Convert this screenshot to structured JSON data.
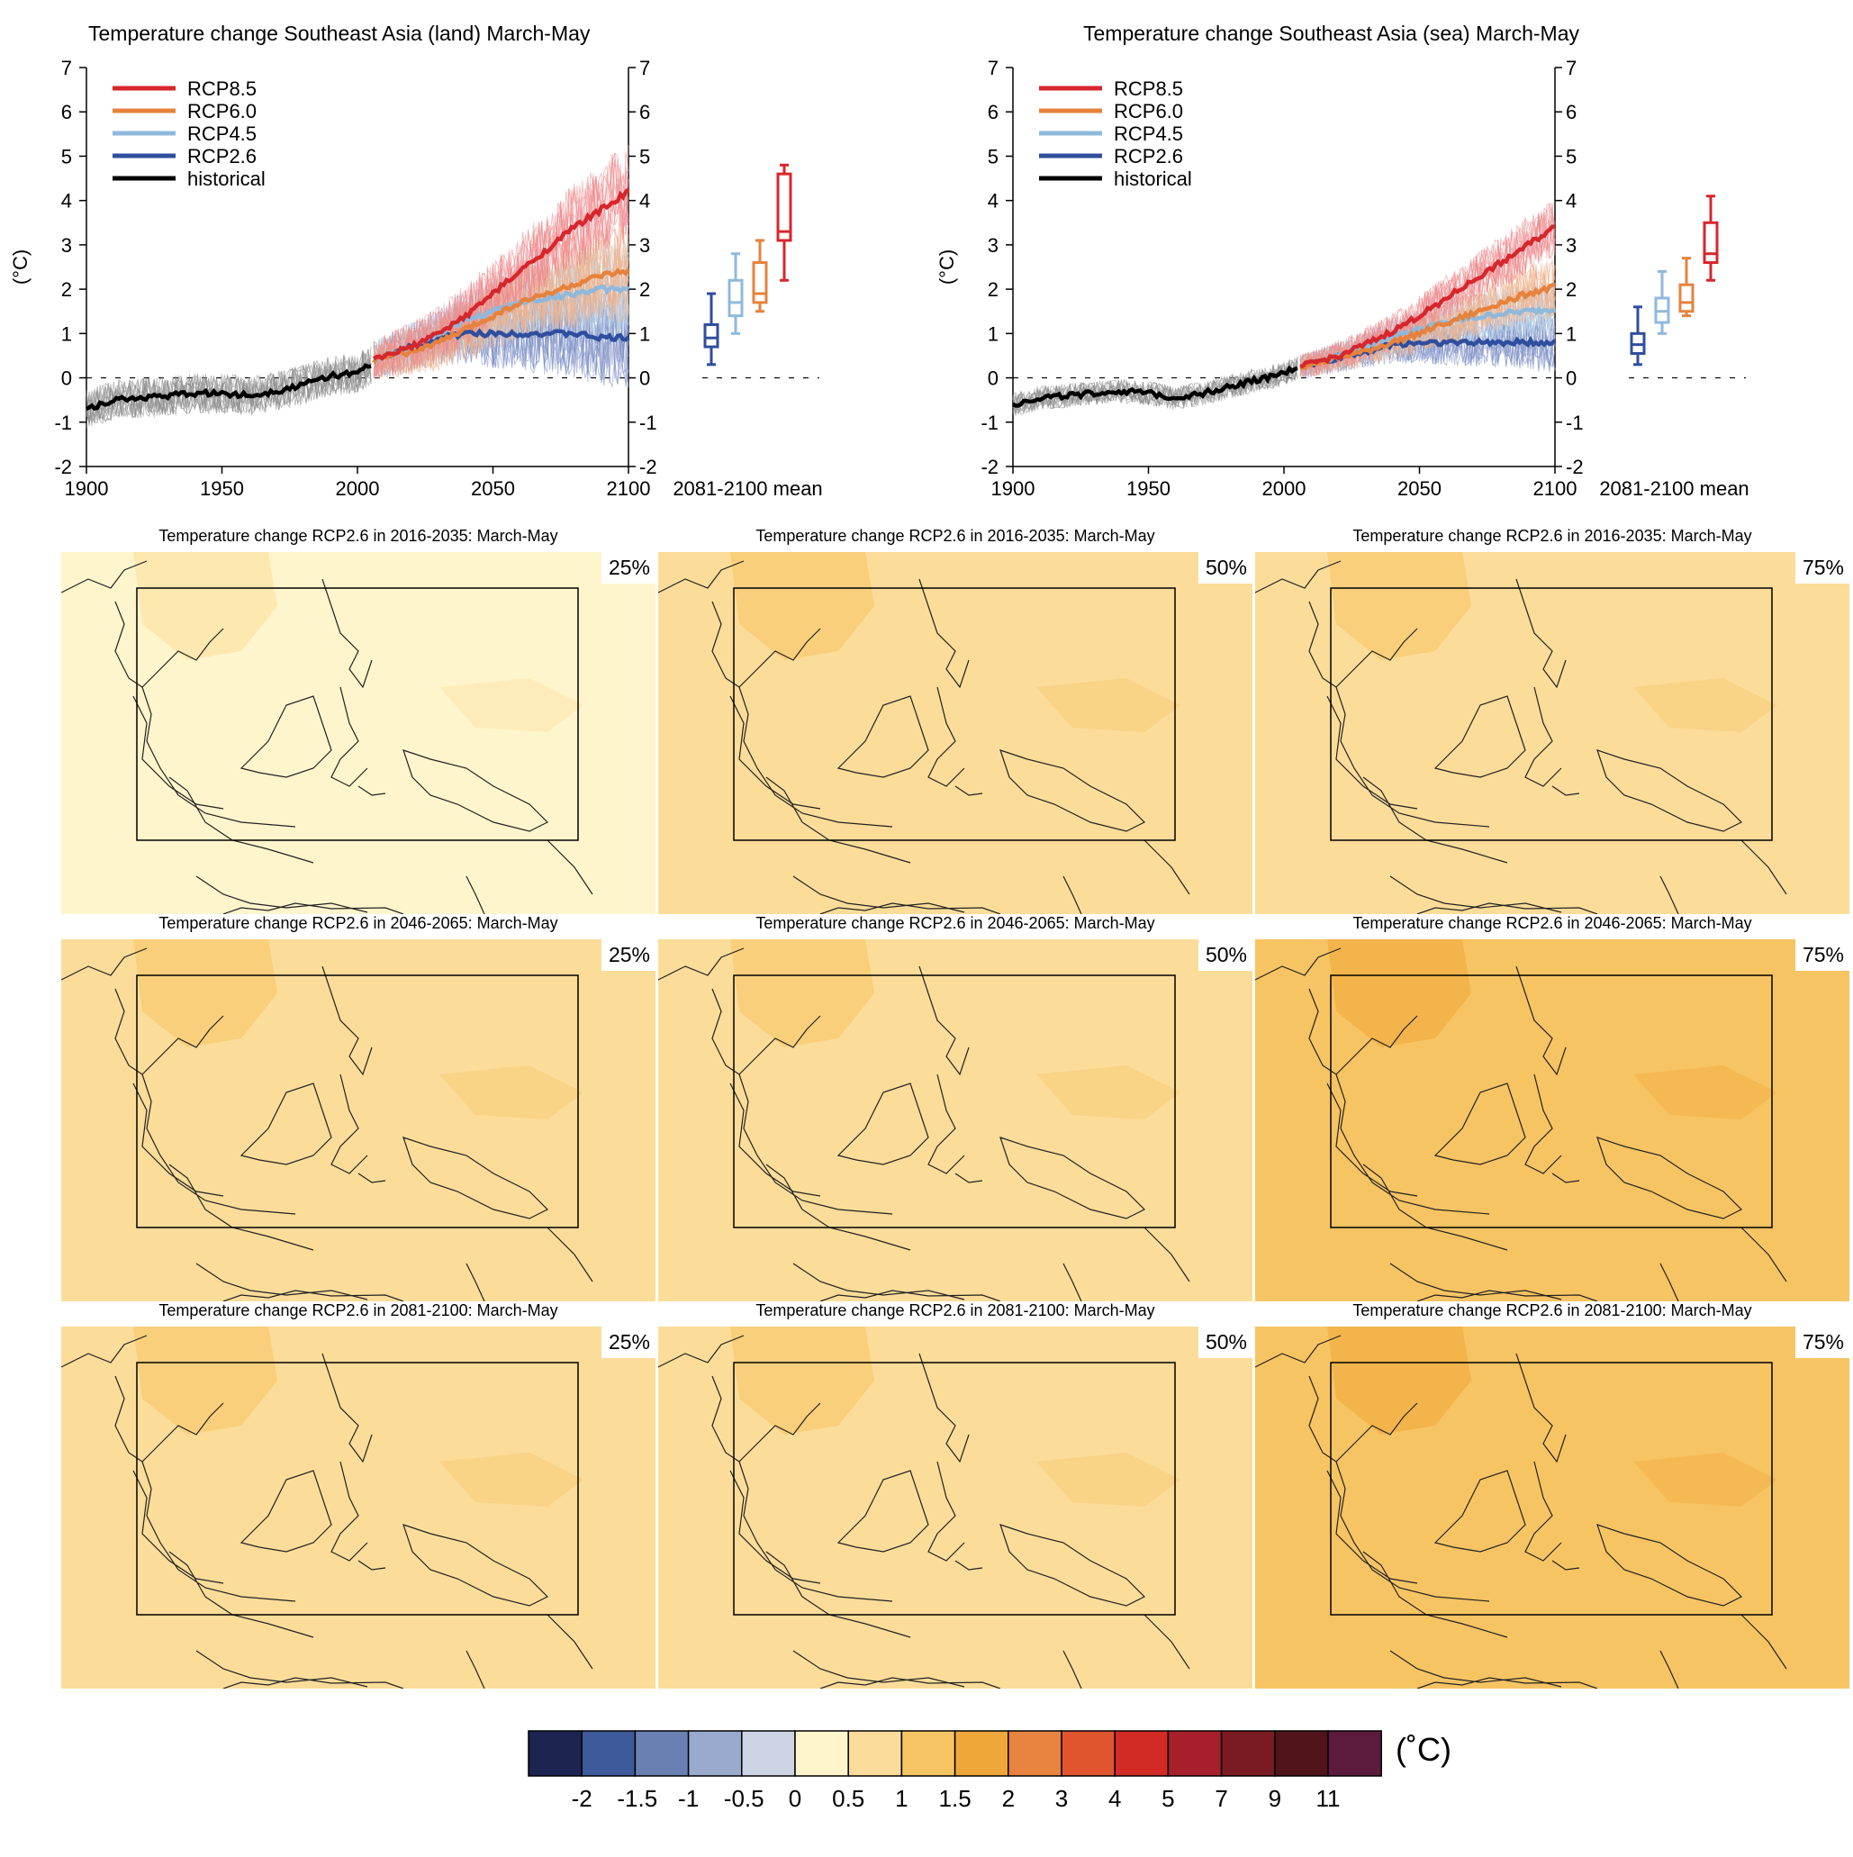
{
  "timeseries": [
    {
      "title": "Temperature change Southeast Asia (land) March-May",
      "ylabel": "(°C)",
      "mean_label": "2081-2100 mean",
      "chart_data": {
        "type": "line",
        "x_range": [
          1900,
          2100
        ],
        "y_range": [
          -2,
          7
        ],
        "x_ticks": [
          "1900",
          "1950",
          "2000",
          "2050",
          "2100"
        ],
        "y_ticks": [
          "-2",
          "-1",
          "0",
          "1",
          "2",
          "3",
          "4",
          "5",
          "6",
          "7"
        ],
        "legend_position": "top-left",
        "series": [
          {
            "name": "RCP8.5",
            "color": "#d7262c",
            "x": [
              2006,
              2020,
              2030,
              2040,
              2050,
              2060,
              2070,
              2080,
              2090,
              2100
            ],
            "y": [
              0.4,
              0.7,
              1.0,
              1.4,
              1.9,
              2.4,
              2.9,
              3.4,
              3.8,
              4.2
            ]
          },
          {
            "name": "RCP6.0",
            "color": "#e6823c",
            "x": [
              2006,
              2020,
              2030,
              2040,
              2050,
              2060,
              2070,
              2080,
              2090,
              2100
            ],
            "y": [
              0.4,
              0.6,
              0.8,
              1.1,
              1.4,
              1.7,
              1.9,
              2.1,
              2.3,
              2.4
            ]
          },
          {
            "name": "RCP4.5",
            "color": "#8fb9dc",
            "x": [
              2006,
              2020,
              2030,
              2040,
              2050,
              2060,
              2070,
              2080,
              2090,
              2100
            ],
            "y": [
              0.4,
              0.7,
              1.0,
              1.3,
              1.5,
              1.7,
              1.8,
              1.9,
              2.0,
              2.0
            ]
          },
          {
            "name": "RCP2.6",
            "color": "#2f4e9e",
            "x": [
              2006,
              2020,
              2030,
              2040,
              2050,
              2060,
              2070,
              2080,
              2090,
              2100
            ],
            "y": [
              0.4,
              0.7,
              0.9,
              1.0,
              1.0,
              1.0,
              1.0,
              1.0,
              0.9,
              0.9
            ]
          },
          {
            "name": "historical",
            "color": "#000000",
            "x": [
              1900,
              1910,
              1920,
              1930,
              1940,
              1950,
              1960,
              1970,
              1980,
              1990,
              2000,
              2005
            ],
            "y": [
              -0.7,
              -0.5,
              -0.45,
              -0.4,
              -0.35,
              -0.35,
              -0.4,
              -0.3,
              -0.15,
              0.05,
              0.1,
              0.3
            ]
          }
        ],
        "mean_boxes": [
          {
            "name": "RCP2.6",
            "color": "#2f4e9e",
            "min": 0.3,
            "q1": 0.7,
            "median": 0.9,
            "q3": 1.2,
            "max": 1.9
          },
          {
            "name": "RCP4.5",
            "color": "#8fb9dc",
            "min": 1.0,
            "q1": 1.4,
            "median": 1.7,
            "q3": 2.2,
            "max": 2.8
          },
          {
            "name": "RCP6.0",
            "color": "#e6823c",
            "min": 1.5,
            "q1": 1.7,
            "median": 1.9,
            "q3": 2.6,
            "max": 3.1
          },
          {
            "name": "RCP8.5",
            "color": "#d7262c",
            "min": 2.2,
            "q1": 3.1,
            "median": 3.3,
            "q3": 4.6,
            "max": 4.8
          }
        ]
      }
    },
    {
      "title": "Temperature change Southeast Asia (sea) March-May",
      "ylabel": "(°C)",
      "mean_label": "2081-2100 mean",
      "chart_data": {
        "type": "line",
        "x_range": [
          1900,
          2100
        ],
        "y_range": [
          -2,
          7
        ],
        "x_ticks": [
          "1900",
          "1950",
          "2000",
          "2050",
          "2100"
        ],
        "y_ticks": [
          "-2",
          "-1",
          "0",
          "1",
          "2",
          "3",
          "4",
          "5",
          "6",
          "7"
        ],
        "legend_position": "top-left",
        "series": [
          {
            "name": "RCP8.5",
            "color": "#d7262c",
            "x": [
              2006,
              2020,
              2030,
              2040,
              2050,
              2060,
              2070,
              2080,
              2090,
              2100
            ],
            "y": [
              0.25,
              0.5,
              0.75,
              1.05,
              1.4,
              1.8,
              2.2,
              2.6,
              3.0,
              3.4
            ]
          },
          {
            "name": "RCP6.0",
            "color": "#e6823c",
            "x": [
              2006,
              2020,
              2030,
              2040,
              2050,
              2060,
              2070,
              2080,
              2090,
              2100
            ],
            "y": [
              0.25,
              0.45,
              0.6,
              0.8,
              1.0,
              1.25,
              1.45,
              1.7,
              1.9,
              2.05
            ]
          },
          {
            "name": "RCP4.5",
            "color": "#8fb9dc",
            "x": [
              2006,
              2020,
              2030,
              2040,
              2050,
              2060,
              2070,
              2080,
              2090,
              2100
            ],
            "y": [
              0.25,
              0.5,
              0.7,
              0.95,
              1.1,
              1.25,
              1.35,
              1.45,
              1.5,
              1.55
            ]
          },
          {
            "name": "RCP2.6",
            "color": "#2f4e9e",
            "x": [
              2006,
              2020,
              2030,
              2040,
              2050,
              2060,
              2070,
              2080,
              2090,
              2100
            ],
            "y": [
              0.25,
              0.45,
              0.6,
              0.75,
              0.8,
              0.8,
              0.8,
              0.8,
              0.8,
              0.8
            ]
          },
          {
            "name": "historical",
            "color": "#000000",
            "x": [
              1900,
              1910,
              1920,
              1930,
              1940,
              1950,
              1960,
              1970,
              1980,
              1990,
              2000,
              2005
            ],
            "y": [
              -0.6,
              -0.45,
              -0.4,
              -0.35,
              -0.3,
              -0.35,
              -0.45,
              -0.35,
              -0.2,
              -0.05,
              0.1,
              0.25
            ]
          }
        ],
        "mean_boxes": [
          {
            "name": "RCP2.6",
            "color": "#2f4e9e",
            "min": 0.3,
            "q1": 0.55,
            "median": 0.75,
            "q3": 1.0,
            "max": 1.6
          },
          {
            "name": "RCP4.5",
            "color": "#8fb9dc",
            "min": 1.0,
            "q1": 1.25,
            "median": 1.5,
            "q3": 1.8,
            "max": 2.4
          },
          {
            "name": "RCP6.0",
            "color": "#e6823c",
            "min": 1.4,
            "q1": 1.5,
            "median": 1.7,
            "q3": 2.1,
            "max": 2.7
          },
          {
            "name": "RCP8.5",
            "color": "#d7262c",
            "min": 2.2,
            "q1": 2.6,
            "median": 2.8,
            "q3": 3.5,
            "max": 4.1
          }
        ]
      }
    }
  ],
  "maps": {
    "rows": [
      {
        "title": "Temperature change RCP2.6 in 2016-2035: March-May",
        "levels": [
          0.5,
          0.9,
          1.0
        ]
      },
      {
        "title": "Temperature change RCP2.6 in 2046-2065: March-May",
        "levels": [
          0.9,
          1.0,
          1.3
        ]
      },
      {
        "title": "Temperature change RCP2.6 in 2081-2100: March-May",
        "levels": [
          0.9,
          1.0,
          1.3
        ]
      }
    ],
    "percentiles": [
      "25%",
      "50%",
      "75%"
    ]
  },
  "colorbar": {
    "unit": "(˚C)",
    "colors": [
      "#1d2452",
      "#3f5a9a",
      "#6a80b3",
      "#99aacd",
      "#cdd4e4",
      "#fef5cc",
      "#fbdc99",
      "#f7c463",
      "#f0a73a",
      "#e98340",
      "#e05430",
      "#d42a26",
      "#a61f2b",
      "#7a1a22",
      "#52141b",
      "#5c1a3c"
    ],
    "labels": [
      "-2",
      "-1.5",
      "-1",
      "-0.5",
      "0",
      "0.5",
      "1",
      "1.5",
      "2",
      "3",
      "4",
      "5",
      "7",
      "9",
      "11"
    ]
  }
}
